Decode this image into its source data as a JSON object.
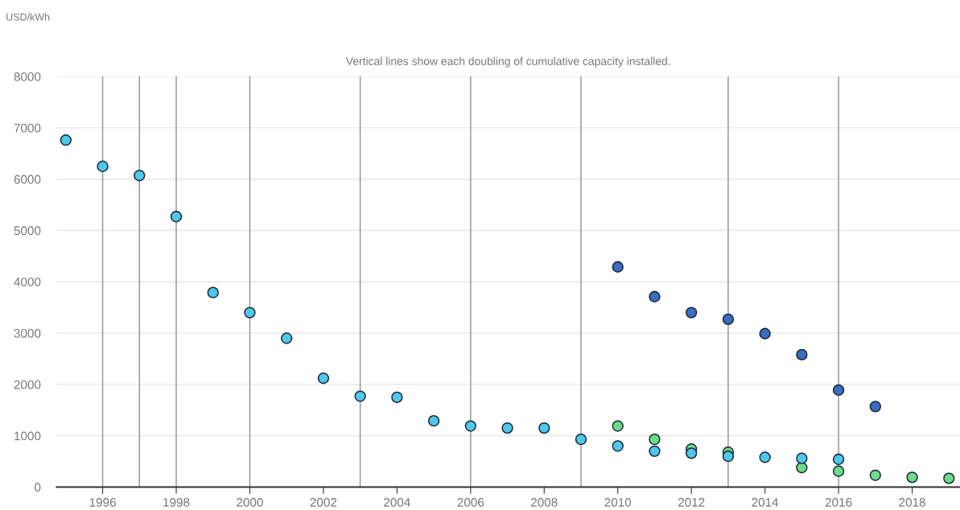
{
  "chart_data": {
    "type": "scatter",
    "annotations": [
      "USD/kWh",
      "Vertical lines show each doubling of cumulative capacity installed."
    ],
    "series": [
      {
        "color": "#4fc8ec",
        "x": [
          1995,
          1996,
          1997,
          1998,
          1999,
          2000,
          2001,
          2002,
          2003,
          2004,
          2005,
          2006,
          2007,
          2008,
          2009,
          2010,
          2011,
          2012,
          2013,
          2014,
          2015,
          2016
        ],
        "values": [
          6760,
          6250,
          6070,
          5270,
          3790,
          3400,
          2900,
          2120,
          1770,
          1750,
          1290,
          1190,
          1150,
          1150,
          930,
          800,
          700,
          660,
          600,
          580,
          560,
          540
        ]
      },
      {
        "color": "#3a6cc0",
        "x": [
          2010,
          2011,
          2012,
          2013,
          2014,
          2015,
          2016,
          2017
        ],
        "values": [
          4290,
          3710,
          3400,
          3270,
          2990,
          2580,
          1890,
          1570
        ]
      },
      {
        "color": "#6ddc8a",
        "x": [
          2010,
          2011,
          2012,
          2013,
          2014,
          2015,
          2016,
          2017,
          2018,
          2019
        ],
        "values": [
          1190,
          930,
          740,
          680,
          null,
          380,
          310,
          230,
          190,
          170
        ]
      }
    ],
    "xlim": [
      1994.75,
      2019.3
    ],
    "xticks": [
      1996,
      1998,
      2000,
      2002,
      2004,
      2006,
      2008,
      2010,
      2012,
      2014,
      2016,
      2018
    ],
    "ylim": [
      0,
      8000
    ],
    "yticks": [
      0,
      1000,
      2000,
      3000,
      4000,
      5000,
      6000,
      7000,
      8000
    ],
    "ref_lines": [
      {
        "axis": "x",
        "value": 1996,
        "color": "#999999"
      },
      {
        "axis": "x",
        "value": 1997,
        "color": "#999999"
      },
      {
        "axis": "x",
        "value": 1998,
        "color": "#999999"
      },
      {
        "axis": "x",
        "value": 2000,
        "color": "#999999"
      },
      {
        "axis": "x",
        "value": 2003,
        "color": "#999999"
      },
      {
        "axis": "x",
        "value": 2006,
        "color": "#999999"
      },
      {
        "axis": "x",
        "value": 2009,
        "color": "#999999"
      },
      {
        "axis": "x",
        "value": 2013,
        "color": "#999999"
      },
      {
        "axis": "x",
        "value": 2016,
        "color": "#999999"
      }
    ],
    "grid": "y",
    "marker": "circle"
  }
}
